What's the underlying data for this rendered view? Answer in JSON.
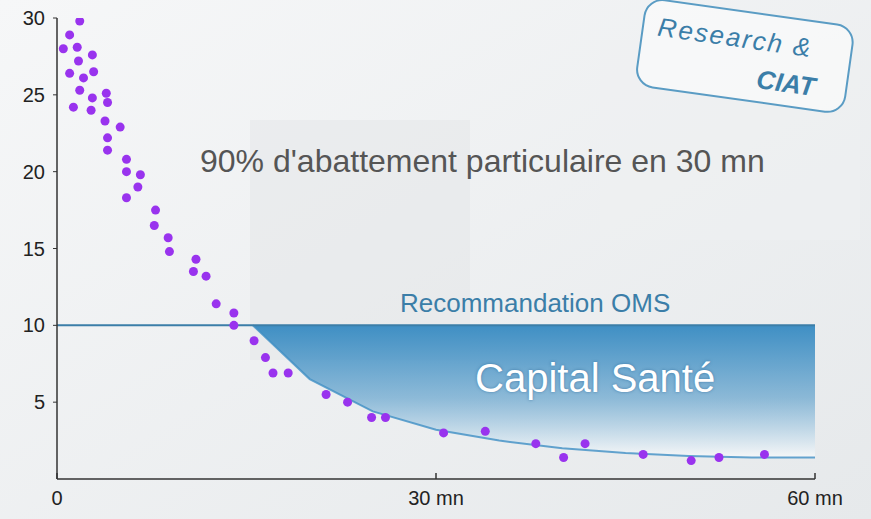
{
  "chart_data": {
    "type": "scatter",
    "title": "90% d'abattement particulaire en 30 mn",
    "annotations": [
      "Capital Santé",
      "Research &",
      "CIAT"
    ],
    "hline": {
      "value": 10,
      "label": "Recommandation OMS"
    },
    "xlim": [
      0,
      60
    ],
    "xticks": [
      0,
      {
        "value": 30,
        "label": "30 mn"
      },
      {
        "value": 60,
        "label": "60 mn"
      }
    ],
    "ylim": [
      0,
      30
    ],
    "yticks": [
      5,
      10,
      15,
      20,
      25,
      30
    ],
    "grid": false,
    "series": [
      {
        "type": "scatter",
        "color": "#9933ee",
        "marker": "circle",
        "x": [
          0.5,
          1.0,
          1.8,
          1.6,
          1.0,
          1.7,
          2.8,
          2.9,
          2.1,
          1.8,
          1.3,
          2.8,
          2.7,
          3.9,
          4.0,
          3.8,
          4.0,
          4.0,
          5.0,
          5.5,
          5.5,
          5.5,
          6.6,
          6.4,
          7.8,
          7.7,
          8.8,
          8.9,
          11.0,
          10.8,
          11.8,
          12.6,
          14.0,
          14.0,
          15.6,
          16.5,
          17.1,
          18.3,
          21.3,
          23.0,
          24.9,
          26.0,
          30.6,
          33.9,
          37.9,
          41.8,
          40.1,
          46.4,
          50.2,
          52.4,
          56.0
        ],
        "values": [
          28.0,
          28.9,
          29.8,
          28.1,
          26.4,
          27.2,
          27.6,
          26.5,
          26.1,
          25.3,
          24.2,
          24.8,
          24.0,
          25.1,
          24.5,
          23.3,
          22.2,
          21.4,
          22.9,
          20.8,
          20.0,
          18.3,
          19.8,
          19.0,
          17.5,
          16.5,
          15.7,
          14.8,
          14.3,
          13.5,
          13.2,
          11.4,
          10.8,
          10.0,
          9.0,
          7.9,
          6.9,
          6.9,
          5.5,
          5.0,
          4.0,
          4.0,
          3.0,
          3.1,
          2.3,
          2.3,
          1.4,
          1.6,
          1.2,
          1.4,
          1.6
        ]
      },
      {
        "type": "area",
        "color": "#3f8fc4",
        "x": [
          15.5,
          20,
          25,
          30,
          35,
          40,
          45,
          50,
          55,
          60
        ],
        "values": [
          10,
          6.5,
          4.4,
          3.2,
          2.5,
          2.0,
          1.7,
          1.5,
          1.4,
          1.4
        ]
      }
    ]
  }
}
